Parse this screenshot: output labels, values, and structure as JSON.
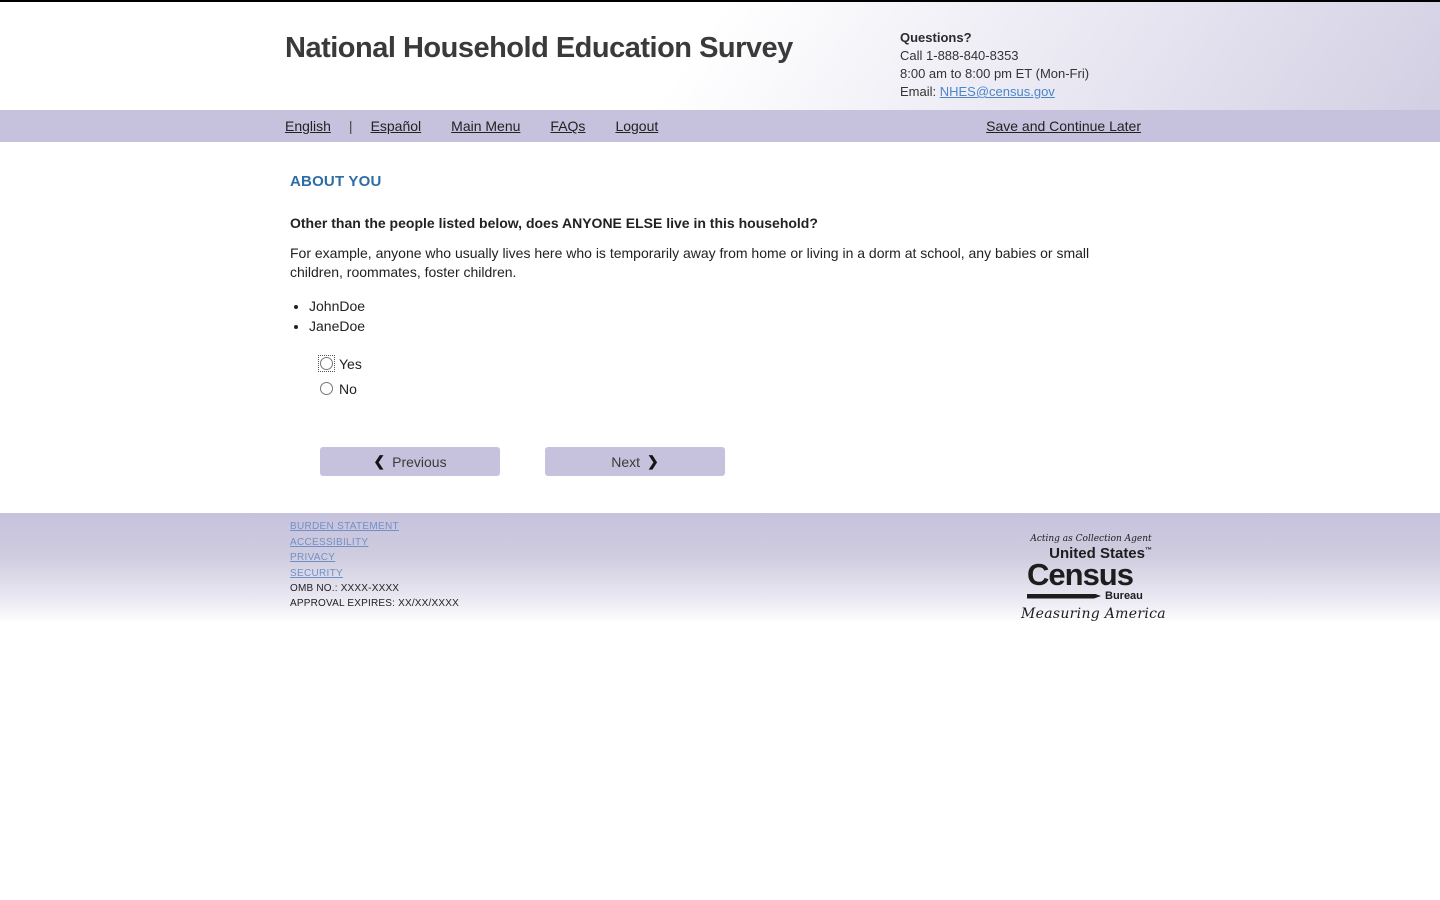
{
  "header": {
    "title": "National Household Education Survey",
    "questions": {
      "heading": "Questions?",
      "call": "Call 1-888-840-8353",
      "hours": "8:00 am to 8:00 pm ET (Mon-Fri)",
      "email_label": "Email: ",
      "email_link": "NHES@census.gov"
    }
  },
  "nav": {
    "links": [
      "English",
      "Español",
      "Main Menu",
      "FAQs",
      "Logout"
    ],
    "separator": "|",
    "save_link": "Save and Continue Later"
  },
  "main": {
    "section_title": "ABOUT YOU",
    "question": "Other than the people listed below, does ANYONE ELSE live in this household?",
    "instructions": "For example, anyone who usually lives here who is temporarily away from home or living in a dorm at school, any babies or small children, roommates, foster children.",
    "household_members": [
      "JohnDoe",
      "JaneDoe"
    ],
    "options": [
      {
        "label": "Yes",
        "selected": false,
        "focused": true
      },
      {
        "label": "No",
        "selected": false,
        "focused": false
      }
    ],
    "previous_label": "Previous",
    "next_label": "Next",
    "prev_chevron": "❮",
    "next_chevron": "❯"
  },
  "footer": {
    "links": [
      "BURDEN STATEMENT",
      "ACCESSIBILITY",
      "PRIVACY",
      "SECURITY"
    ],
    "omb": "OMB NO.: XXXX-XXXX",
    "approval": "APPROVAL EXPIRES: XX/XX/XXXX",
    "census_logo": {
      "agent_line": "Acting as Collection Agent",
      "us_line": "United States",
      "trademark": "™",
      "census_word": "Census",
      "bureau_word": "Bureau",
      "measuring_line": "Measuring America"
    }
  },
  "colors": {
    "lavender_band": "#c6c2dd",
    "section_title_blue": "#2e6da4",
    "email_link_blue": "#4b87c8",
    "footer_link_blue": "#7090c8",
    "top_bar": "#000000"
  }
}
